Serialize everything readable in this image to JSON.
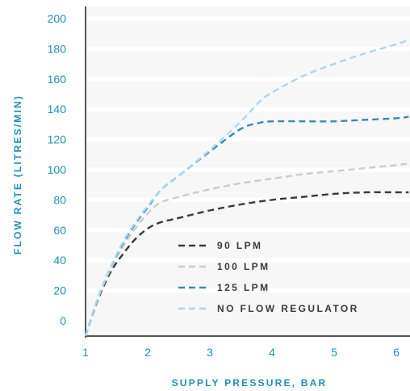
{
  "colors": {
    "axis_text": "#1f8fb8",
    "plot_bg": "#f7f7f7",
    "grid": "#ffffff",
    "axis_line": "#555555"
  },
  "chart_data": {
    "type": "line",
    "title": "",
    "xlabel": "SUPPLY PRESSURE, BAR",
    "ylabel": "FLOW RATE (LITRES/MIN)",
    "xlim": [
      1,
      6.2
    ],
    "ylim": [
      -10,
      205
    ],
    "x_ticks": [
      "1",
      "2",
      "3",
      "4",
      "5",
      "6"
    ],
    "y_ticks": [
      "0",
      "20",
      "40",
      "60",
      "80",
      "100",
      "120",
      "140",
      "160",
      "180",
      "200"
    ],
    "grid": true,
    "legend_position": "lower-right",
    "series": [
      {
        "name": "90 LPM",
        "color": "#3a3a3a",
        "x": [
          1.0,
          1.2,
          1.4,
          1.6,
          1.8,
          2.0,
          2.2,
          2.5,
          3.0,
          3.5,
          4.0,
          4.5,
          5.0,
          5.5,
          6.0,
          6.2
        ],
        "y": [
          -10,
          14,
          32,
          44,
          54,
          61,
          65,
          68,
          73,
          77,
          80,
          82,
          84,
          85,
          85,
          85
        ]
      },
      {
        "name": "100 LPM",
        "color": "#cccccc",
        "x": [
          1.0,
          1.2,
          1.4,
          1.6,
          1.8,
          2.0,
          2.2,
          2.5,
          3.0,
          3.5,
          4.0,
          4.5,
          5.0,
          5.5,
          6.0,
          6.2
        ],
        "y": [
          -10,
          15,
          34,
          49,
          61,
          71,
          78,
          82,
          87,
          91,
          94,
          97,
          99,
          101,
          103,
          104
        ]
      },
      {
        "name": "125 LPM",
        "color": "#3f88ae",
        "x": [
          1.0,
          1.2,
          1.4,
          1.6,
          1.8,
          2.0,
          2.2,
          2.5,
          3.0,
          3.5,
          3.8,
          4.0,
          4.5,
          5.0,
          5.5,
          6.0,
          6.2
        ],
        "y": [
          -10,
          15,
          35,
          51,
          64,
          75,
          86,
          96,
          112,
          127,
          131,
          132,
          132,
          132,
          133,
          134,
          135
        ]
      },
      {
        "name": "NO FLOW REGULATOR",
        "color": "#a9d8f2",
        "x": [
          1.0,
          1.2,
          1.4,
          1.6,
          1.8,
          2.0,
          2.2,
          2.5,
          3.0,
          3.5,
          3.8,
          4.0,
          4.5,
          5.0,
          5.5,
          6.0,
          6.2
        ],
        "y": [
          -10,
          15,
          35,
          52,
          65,
          76,
          86,
          96,
          113,
          132,
          145,
          151,
          162,
          170,
          177,
          183,
          186
        ]
      }
    ]
  }
}
